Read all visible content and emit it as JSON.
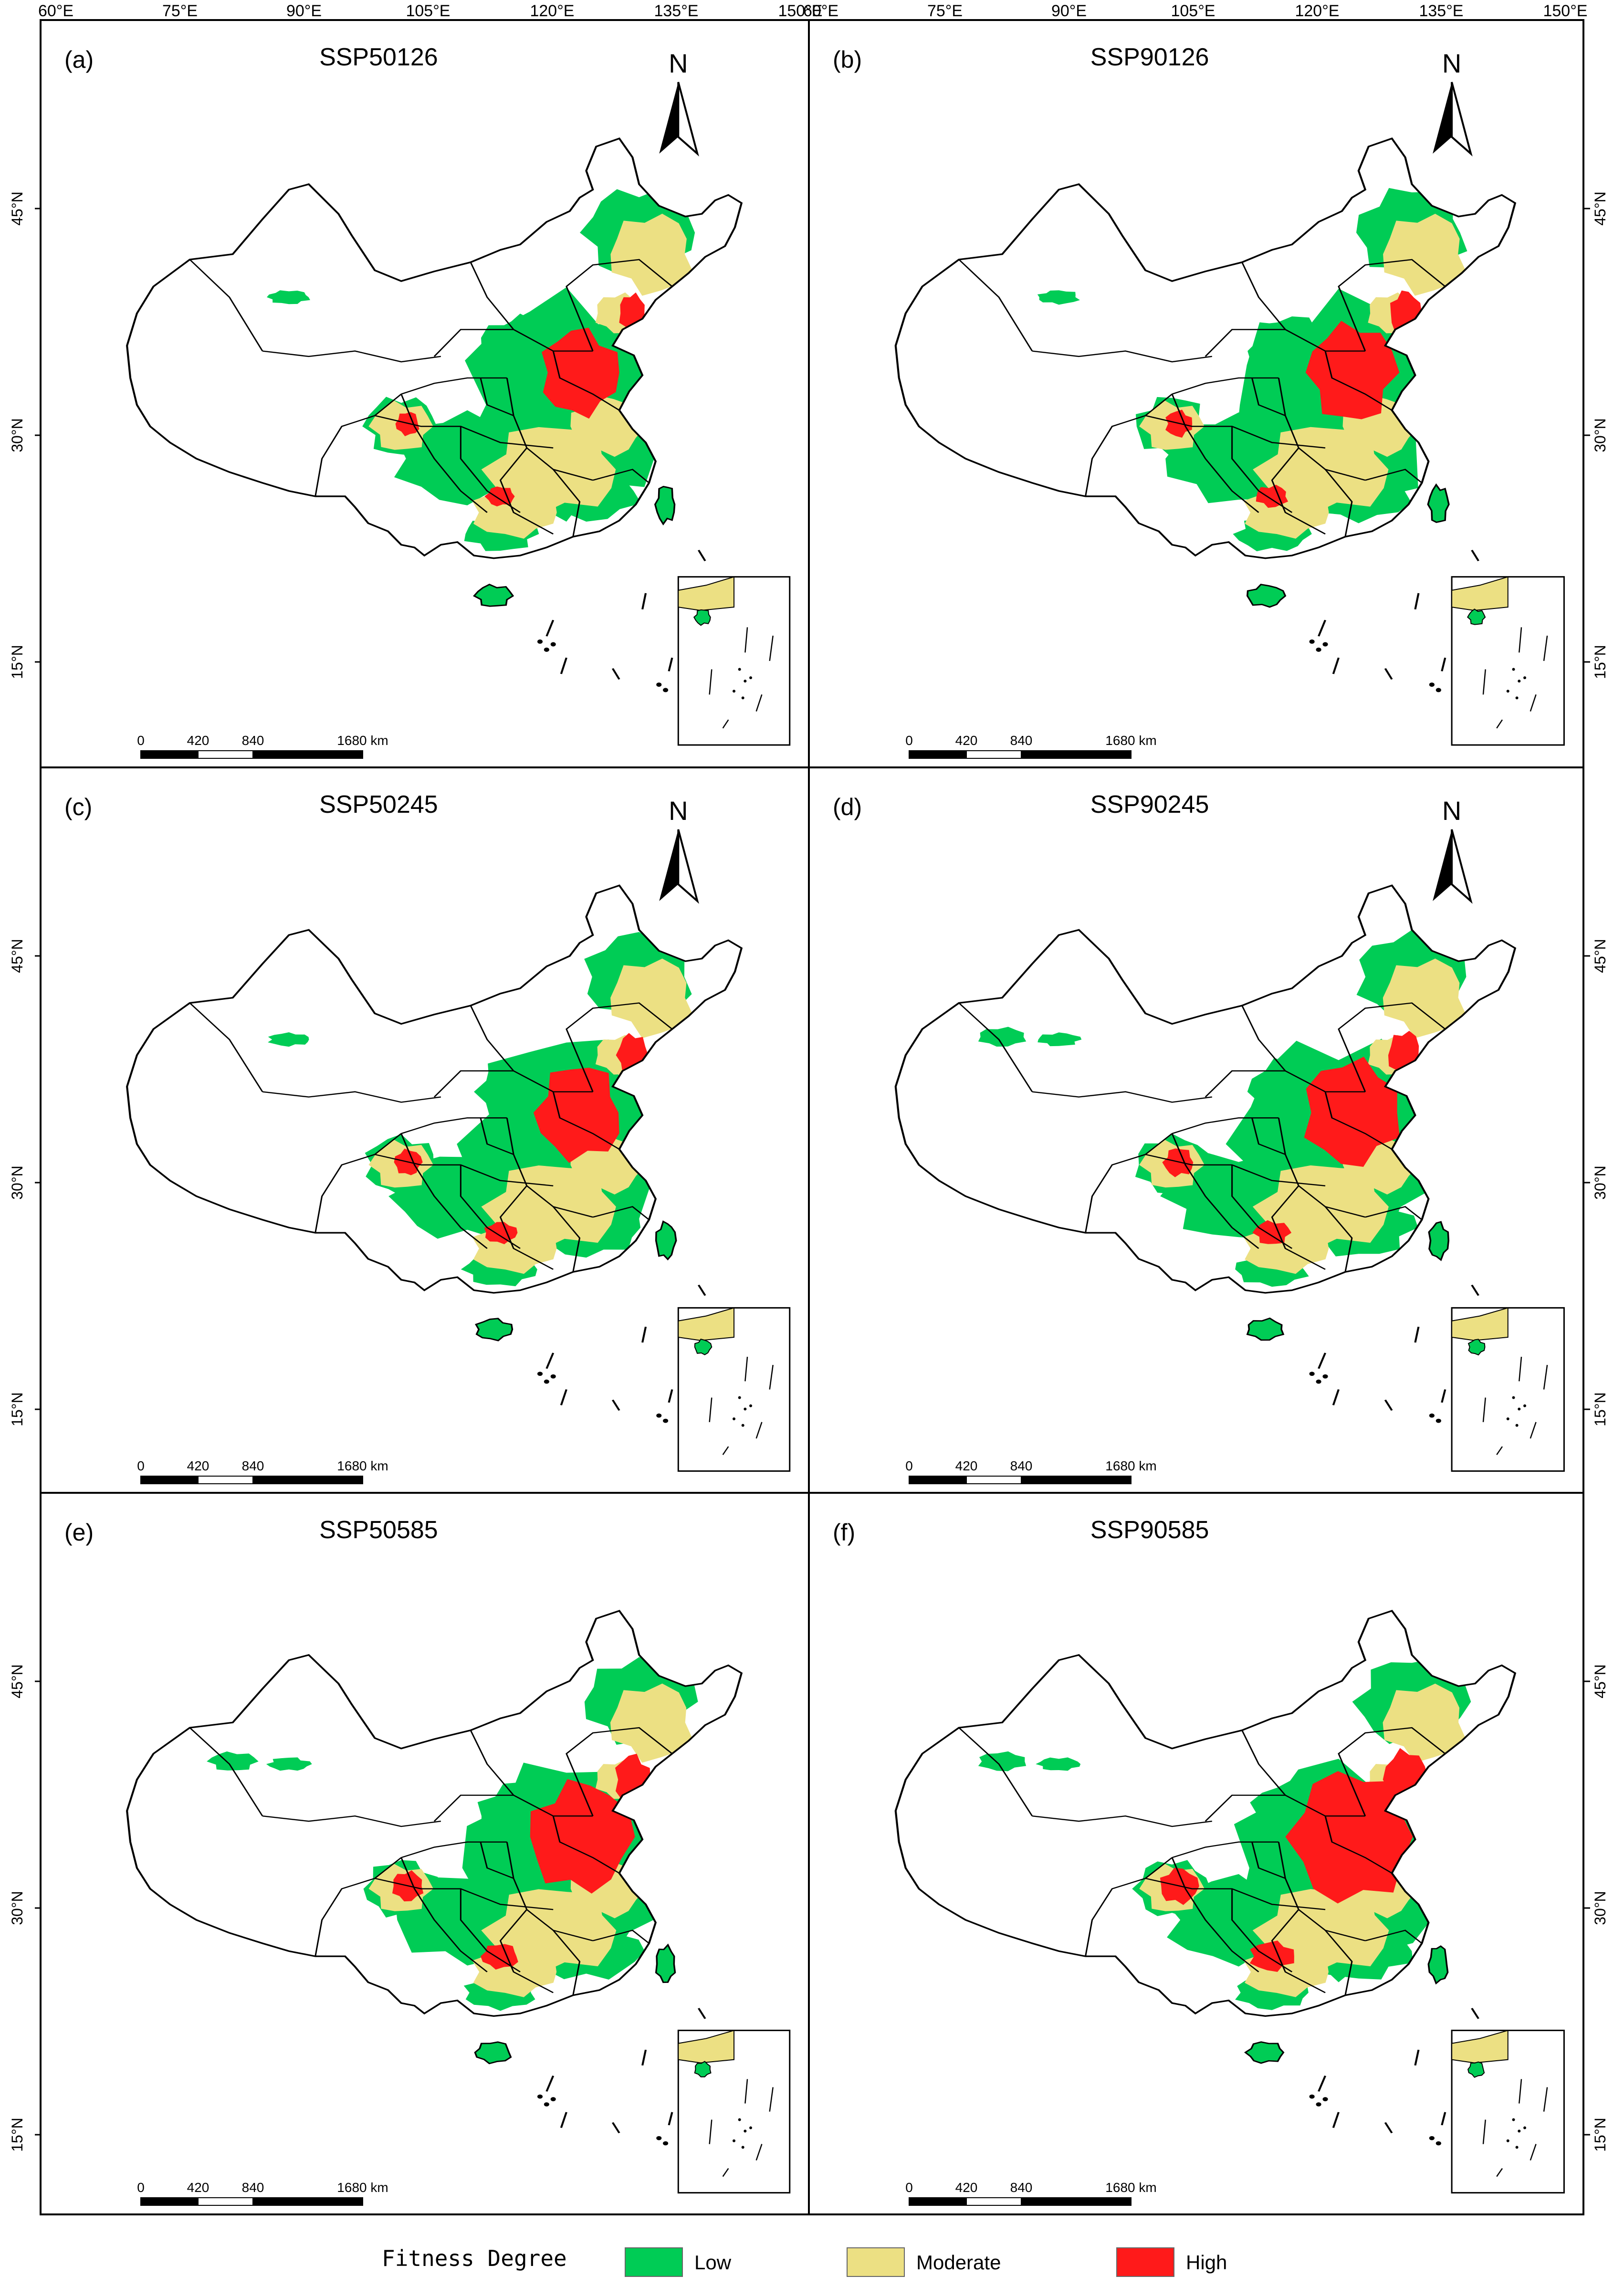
{
  "colors": {
    "low": "#00cc55",
    "moderate": "#ece083",
    "high": "#ff1a1a",
    "border": "#000000",
    "frame": "#000000",
    "background": "#ffffff"
  },
  "axes": {
    "top_lon_labels_left": [
      "60°E",
      "75°E",
      "90°E",
      "105°E",
      "120°E",
      "135°E",
      "150°E"
    ],
    "top_lon_labels_right": [
      "60°E",
      "75°E",
      "90°E",
      "105°E",
      "120°E",
      "135°E",
      "150°E"
    ],
    "lat_labels": [
      "45°N",
      "30°N",
      "15°N"
    ]
  },
  "north_arrow": {
    "label": "N",
    "icon": "north-arrow-icon"
  },
  "scale_bar": {
    "labels": [
      "0",
      "420",
      "840",
      "1680 km"
    ]
  },
  "panels": [
    {
      "id": "a",
      "label": "(a)",
      "title": "SSP50126",
      "show_north": true
    },
    {
      "id": "b",
      "label": "(b)",
      "title": "SSP90126",
      "show_north": true
    },
    {
      "id": "c",
      "label": "(c)",
      "title": "SSP50245",
      "show_north": true
    },
    {
      "id": "d",
      "label": "(d)",
      "title": "SSP90245",
      "show_north": true
    },
    {
      "id": "e",
      "label": "(e)",
      "title": "SSP50585",
      "show_north": false
    },
    {
      "id": "f",
      "label": "(f)",
      "title": "SSP90585",
      "show_north": false
    }
  ],
  "legend": {
    "title": "Fitness Degree",
    "items": [
      {
        "label": "Low",
        "color": "#00cc55"
      },
      {
        "label": "Moderate",
        "color": "#ece083"
      },
      {
        "label": "High",
        "color": "#ff1a1a"
      }
    ]
  }
}
